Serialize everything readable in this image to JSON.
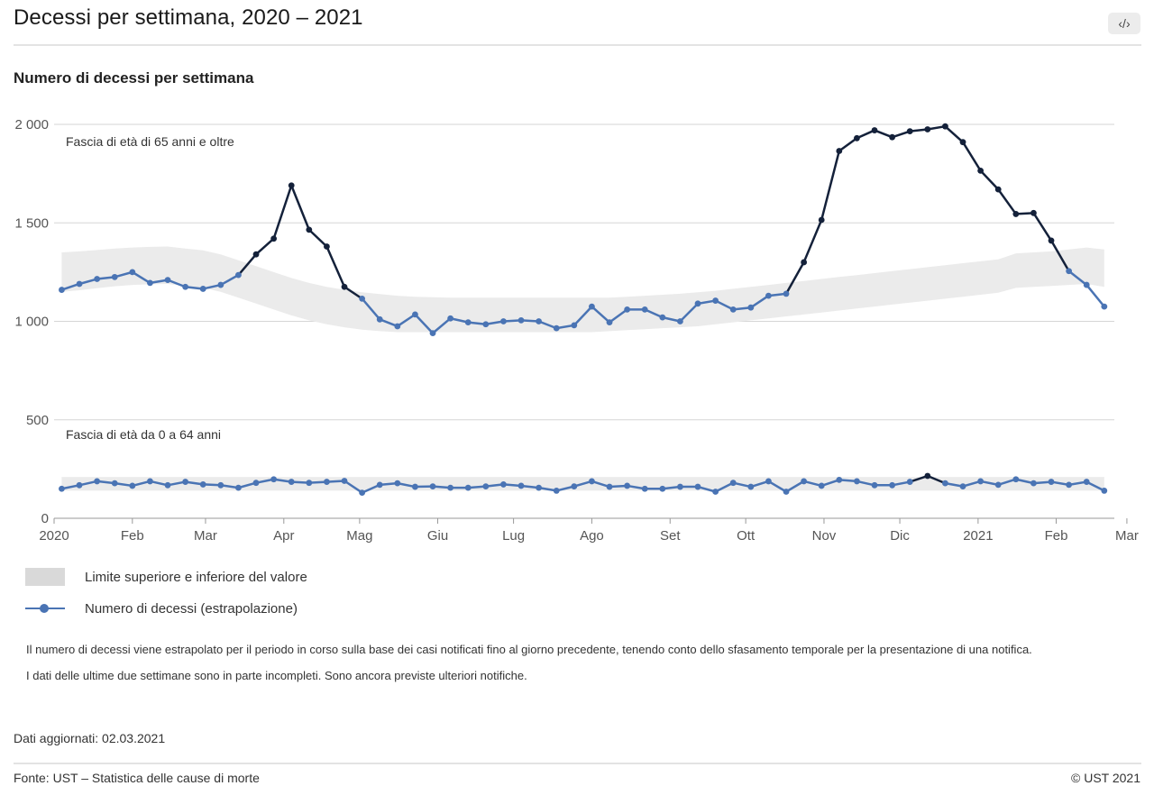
{
  "header": {
    "title": "Decessi per settimana, 2020 – 2021",
    "embed_icon": "code-icon",
    "embed_label": "‹/›"
  },
  "subtitle": "Numero di decessi per settimana",
  "legend": {
    "band_label": "Limite superiore e inferiore del valore",
    "line_label": "Numero di decessi (estrapolazione)"
  },
  "notes": {
    "line1": "Il numero di decessi viene estrapolato per il periodo in corso sulla base dei casi notificati fino al giorno precedente, tenendo conto dello sfasamento temporale per la presentazione di una notifica.",
    "line2": "I dati delle ultime due settimane sono in parte incompleti. Sono ancora previste ulteriori notifiche."
  },
  "updated": "Dati aggiornati: 02.03.2021",
  "footer": {
    "source": "Fonte: UST – Statistica delle cause di morte",
    "copyright": "© UST 2021"
  },
  "colors": {
    "line_normal": "#4a74b4",
    "line_excess": "#14213a",
    "band": "#ebebeb",
    "grid": "#d6d6d6"
  },
  "chart_data": {
    "type": "line",
    "title": "Numero di decessi per settimana",
    "ylim": [
      0,
      2000
    ],
    "yticks": [
      0,
      500,
      1000,
      1500,
      2000
    ],
    "ytick_labels": [
      "0",
      "500",
      "1 000",
      "1 500",
      "2 000"
    ],
    "xlim_week": [
      0,
      60
    ],
    "xticks": [
      {
        "label": "2020",
        "week": 0
      },
      {
        "label": "Feb",
        "week": 4.43
      },
      {
        "label": "Mar",
        "week": 8.57
      },
      {
        "label": "Apr",
        "week": 13
      },
      {
        "label": "Mag",
        "week": 17.29
      },
      {
        "label": "Giu",
        "week": 21.71
      },
      {
        "label": "Lug",
        "week": 26
      },
      {
        "label": "Ago",
        "week": 30.43
      },
      {
        "label": "Set",
        "week": 34.86
      },
      {
        "label": "Ott",
        "week": 39.14
      },
      {
        "label": "Nov",
        "week": 43.57
      },
      {
        "label": "Dic",
        "week": 47.86
      },
      {
        "label": "2021",
        "week": 52.29
      },
      {
        "label": "Feb",
        "week": 56.71
      },
      {
        "label": "Mar",
        "week": 60.71
      }
    ],
    "series": [
      {
        "name": "Fascia di età di 65 anni e oltre",
        "start_week": 0.43,
        "values": [
          1160,
          1190,
          1215,
          1225,
          1250,
          1195,
          1210,
          1175,
          1165,
          1185,
          1235,
          1340,
          1420,
          1690,
          1465,
          1380,
          1175,
          1115,
          1010,
          975,
          1035,
          940,
          1015,
          995,
          985,
          1000,
          1005,
          1000,
          965,
          980,
          1075,
          995,
          1060,
          1060,
          1020,
          1000,
          1090,
          1105,
          1060,
          1070,
          1130,
          1140,
          1300,
          1515,
          1865,
          1930,
          1970,
          1935,
          1965,
          1975,
          1990,
          1910,
          1765,
          1670,
          1545,
          1550,
          1410,
          1255,
          1185,
          1075
        ],
        "band_upper": [
          1350,
          1355,
          1362,
          1370,
          1375,
          1378,
          1380,
          1370,
          1360,
          1340,
          1310,
          1280,
          1250,
          1220,
          1195,
          1175,
          1160,
          1148,
          1138,
          1130,
          1125,
          1122,
          1120,
          1120,
          1120,
          1120,
          1120,
          1120,
          1120,
          1120,
          1120,
          1120,
          1125,
          1130,
          1135,
          1140,
          1148,
          1155,
          1165,
          1175,
          1185,
          1195,
          1205,
          1215,
          1225,
          1235,
          1245,
          1255,
          1265,
          1275,
          1285,
          1295,
          1305,
          1315,
          1345,
          1350,
          1355,
          1365,
          1375,
          1365
        ],
        "band_lower": [
          1150,
          1158,
          1168,
          1178,
          1185,
          1188,
          1190,
          1180,
          1170,
          1150,
          1120,
          1090,
          1060,
          1030,
          1005,
          985,
          970,
          958,
          950,
          945,
          945,
          945,
          945,
          945,
          945,
          945,
          945,
          945,
          945,
          945,
          945,
          950,
          955,
          960,
          965,
          970,
          975,
          985,
          995,
          1005,
          1015,
          1025,
          1035,
          1045,
          1055,
          1065,
          1075,
          1085,
          1095,
          1105,
          1115,
          1125,
          1135,
          1145,
          1170,
          1175,
          1180,
          1185,
          1190,
          1175
        ]
      },
      {
        "name": "Fascia di età da 0 a 64 anni",
        "start_week": 0.43,
        "values": [
          150,
          168,
          188,
          178,
          165,
          188,
          168,
          185,
          172,
          168,
          155,
          180,
          198,
          185,
          180,
          185,
          190,
          130,
          170,
          178,
          160,
          162,
          155,
          155,
          162,
          172,
          165,
          155,
          140,
          162,
          188,
          160,
          165,
          150,
          150,
          160,
          160,
          135,
          180,
          160,
          188,
          135,
          188,
          165,
          195,
          188,
          168,
          168,
          185,
          215,
          178,
          162,
          188,
          170,
          198,
          178,
          185,
          170,
          185,
          140
        ],
        "band_upper": [
          210,
          210,
          210,
          210,
          210,
          210,
          210,
          210,
          210,
          210,
          210,
          210,
          210,
          210,
          210,
          210,
          210,
          210,
          210,
          210,
          210,
          210,
          210,
          210,
          210,
          210,
          210,
          210,
          210,
          210,
          210,
          210,
          210,
          210,
          210,
          210,
          210,
          210,
          210,
          210,
          210,
          210,
          210,
          210,
          210,
          210,
          210,
          210,
          210,
          210,
          210,
          210,
          210,
          210,
          210,
          210,
          210,
          210,
          210,
          210
        ],
        "band_lower": [
          140,
          140,
          140,
          140,
          140,
          140,
          140,
          140,
          140,
          140,
          140,
          140,
          140,
          140,
          140,
          140,
          140,
          140,
          140,
          140,
          140,
          140,
          140,
          140,
          140,
          140,
          140,
          140,
          140,
          140,
          140,
          140,
          140,
          140,
          140,
          140,
          140,
          140,
          140,
          140,
          140,
          140,
          140,
          140,
          140,
          140,
          140,
          140,
          140,
          140,
          140,
          140,
          140,
          140,
          140,
          140,
          140,
          140,
          140,
          140
        ]
      }
    ]
  }
}
